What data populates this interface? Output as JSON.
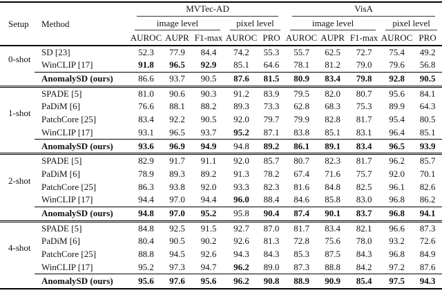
{
  "header": {
    "setup": "Setup",
    "method": "Method",
    "groups": [
      {
        "name": "MVTec-AD",
        "image_level": "image level",
        "pixel_level": "pixel level"
      },
      {
        "name": "VisA",
        "image_level": "image level",
        "pixel_level": "pixel level"
      }
    ],
    "metric_cols": [
      "AUROC",
      "AUPR",
      "F1-max",
      "AUROC",
      "PRO",
      "AUROC",
      "AUPR",
      "F1-max",
      "AUROC",
      "PRO"
    ]
  },
  "sections": [
    {
      "setup": "0-shot",
      "rows": [
        {
          "method": "SD [23]",
          "ours": false,
          "values": [
            "52.3",
            "77.9",
            "84.4",
            "74.2",
            "55.3",
            "55.7",
            "62.5",
            "72.7",
            "75.4",
            "49.2"
          ],
          "bold": []
        },
        {
          "method": "WinCLIP [17]",
          "ours": false,
          "values": [
            "91.8",
            "96.5",
            "92.9",
            "85.1",
            "64.6",
            "78.1",
            "81.2",
            "79.0",
            "79.6",
            "56.8"
          ],
          "bold": [
            0,
            1,
            2
          ]
        },
        {
          "method": "AnomalySD (ours)",
          "ours": true,
          "values": [
            "86.6",
            "93.7",
            "90.5",
            "87.6",
            "81.5",
            "80.9",
            "83.4",
            "79.8",
            "92.8",
            "90.5"
          ],
          "bold": [
            3,
            4,
            5,
            6,
            7,
            8,
            9
          ]
        }
      ]
    },
    {
      "setup": "1-shot",
      "rows": [
        {
          "method": "SPADE [5]",
          "ours": false,
          "values": [
            "81.0",
            "90.6",
            "90.3",
            "91.2",
            "83.9",
            "79.5",
            "82.0",
            "80.7",
            "95.6",
            "84.1"
          ],
          "bold": []
        },
        {
          "method": "PaDiM [6]",
          "ours": false,
          "values": [
            "76.6",
            "88.1",
            "88.2",
            "89.3",
            "73.3",
            "62.8",
            "68.3",
            "75.3",
            "89.9",
            "64.3"
          ],
          "bold": []
        },
        {
          "method": "PatchCore [25]",
          "ours": false,
          "values": [
            "83.4",
            "92.2",
            "90.5",
            "92.0",
            "79.7",
            "79.9",
            "82.8",
            "81.7",
            "95.4",
            "80.5"
          ],
          "bold": []
        },
        {
          "method": "WinCLIP [17]",
          "ours": false,
          "values": [
            "93.1",
            "96.5",
            "93.7",
            "95.2",
            "87.1",
            "83.8",
            "85.1",
            "83.1",
            "96.4",
            "85.1"
          ],
          "bold": [
            3
          ]
        },
        {
          "method": "AnomalySD (ours)",
          "ours": true,
          "values": [
            "93.6",
            "96.9",
            "94.9",
            "94.8",
            "89.2",
            "86.1",
            "89.1",
            "83.4",
            "96.5",
            "93.9"
          ],
          "bold": [
            0,
            1,
            2,
            4,
            5,
            6,
            7,
            8,
            9
          ]
        }
      ]
    },
    {
      "setup": "2-shot",
      "rows": [
        {
          "method": "SPADE [5]",
          "ours": false,
          "values": [
            "82.9",
            "91.7",
            "91.1",
            "92.0",
            "85.7",
            "80.7",
            "82.3",
            "81.7",
            "96.2",
            "85.7"
          ],
          "bold": []
        },
        {
          "method": "PaDiM [6]",
          "ours": false,
          "values": [
            "78.9",
            "89.3",
            "89.2",
            "91.3",
            "78.2",
            "67.4",
            "71.6",
            "75.7",
            "92.0",
            "70.1"
          ],
          "bold": []
        },
        {
          "method": "PatchCore [25]",
          "ours": false,
          "values": [
            "86.3",
            "93.8",
            "92.0",
            "93.3",
            "82.3",
            "81.6",
            "84.8",
            "82.5",
            "96.1",
            "82.6"
          ],
          "bold": []
        },
        {
          "method": "WinCLIP [17]",
          "ours": false,
          "values": [
            "94.4",
            "97.0",
            "94.4",
            "96.0",
            "88.4",
            "84.6",
            "85.8",
            "83.0",
            "96.8",
            "86.2"
          ],
          "bold": [
            3
          ]
        },
        {
          "method": "AnomalySD (ours)",
          "ours": true,
          "values": [
            "94.8",
            "97.0",
            "95.2",
            "95.8",
            "90.4",
            "87.4",
            "90.1",
            "83.7",
            "96.8",
            "94.1"
          ],
          "bold": [
            0,
            1,
            2,
            4,
            5,
            6,
            7,
            8,
            9
          ]
        }
      ]
    },
    {
      "setup": "4-shot",
      "rows": [
        {
          "method": "SPADE [5]",
          "ours": false,
          "values": [
            "84.8",
            "92.5",
            "91.5",
            "92.7",
            "87.0",
            "81.7",
            "83.4",
            "82.1",
            "96.6",
            "87.3"
          ],
          "bold": []
        },
        {
          "method": "PaDiM [6]",
          "ours": false,
          "values": [
            "80.4",
            "90.5",
            "90.2",
            "92.6",
            "81.3",
            "72.8",
            "75.6",
            "78.0",
            "93.2",
            "72.6"
          ],
          "bold": []
        },
        {
          "method": "PatchCore [25]",
          "ours": false,
          "values": [
            "88.8",
            "94.5",
            "92.6",
            "94.3",
            "84.3",
            "85.3",
            "87.5",
            "84.3",
            "96.8",
            "84.9"
          ],
          "bold": []
        },
        {
          "method": "WinCLIP [17]",
          "ours": false,
          "values": [
            "95.2",
            "97.3",
            "94.7",
            "96.2",
            "89.0",
            "87.3",
            "88.8",
            "84.2",
            "97.2",
            "87.6"
          ],
          "bold": [
            3
          ]
        },
        {
          "method": "AnomalySD (ours)",
          "ours": true,
          "values": [
            "95.6",
            "97.6",
            "95.6",
            "96.2",
            "90.8",
            "88.9",
            "90.9",
            "85.4",
            "97.5",
            "94.3"
          ],
          "bold": [
            0,
            1,
            2,
            3,
            4,
            5,
            6,
            7,
            8,
            9
          ]
        }
      ]
    }
  ]
}
